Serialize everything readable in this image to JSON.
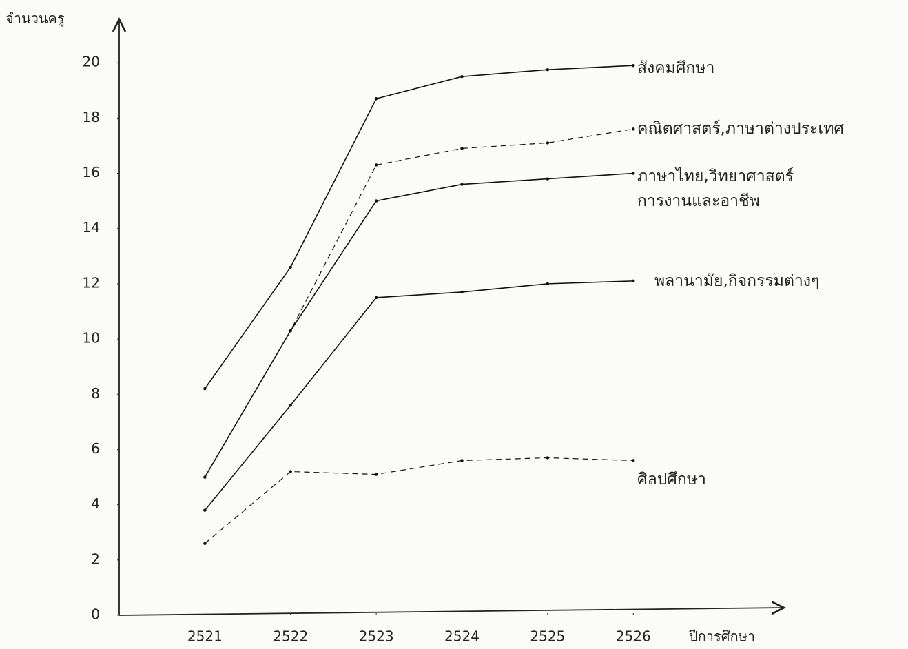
{
  "chart_data": {
    "type": "line",
    "y_label": "จำนวนครู",
    "x_label": "ปีการศึกษา",
    "x": [
      2521,
      2522,
      2523,
      2524,
      2525,
      2526
    ],
    "xlim": [
      2520,
      2528
    ],
    "xticks": [
      2521,
      2522,
      2523,
      2524,
      2525,
      2526
    ],
    "ylim": [
      0,
      21.5
    ],
    "yticks": [
      0,
      2,
      4,
      6,
      8,
      10,
      12,
      14,
      16,
      18,
      20
    ],
    "grid": false,
    "series": [
      {
        "name": "สังคมศึกษา",
        "color": "#111111",
        "style": "solid",
        "values": [
          8.2,
          12.6,
          18.7,
          19.5,
          19.75,
          19.9
        ]
      },
      {
        "name": "คณิตศาสตร์,ภาษาต่างประเทศ",
        "color": "#111111",
        "style": "dashed",
        "values": [
          5.0,
          10.3,
          16.3,
          16.9,
          17.1,
          17.6
        ]
      },
      {
        "name": "ภาษาไทย,วิทยาศาสตร์ การงานและอาชีพ",
        "color": "#111111",
        "style": "solid",
        "values": [
          5.0,
          10.3,
          15.0,
          15.6,
          15.8,
          16.0
        ]
      },
      {
        "name": "พลานามัย,กิจกรรมต่างๆ",
        "color": "#111111",
        "style": "solid",
        "values": [
          3.8,
          7.6,
          11.5,
          11.7,
          12.0,
          12.1
        ]
      },
      {
        "name": "ศิลปศึกษา",
        "color": "#111111",
        "style": "dashed",
        "values": [
          2.6,
          5.2,
          5.1,
          5.6,
          5.7,
          5.6
        ]
      }
    ]
  }
}
